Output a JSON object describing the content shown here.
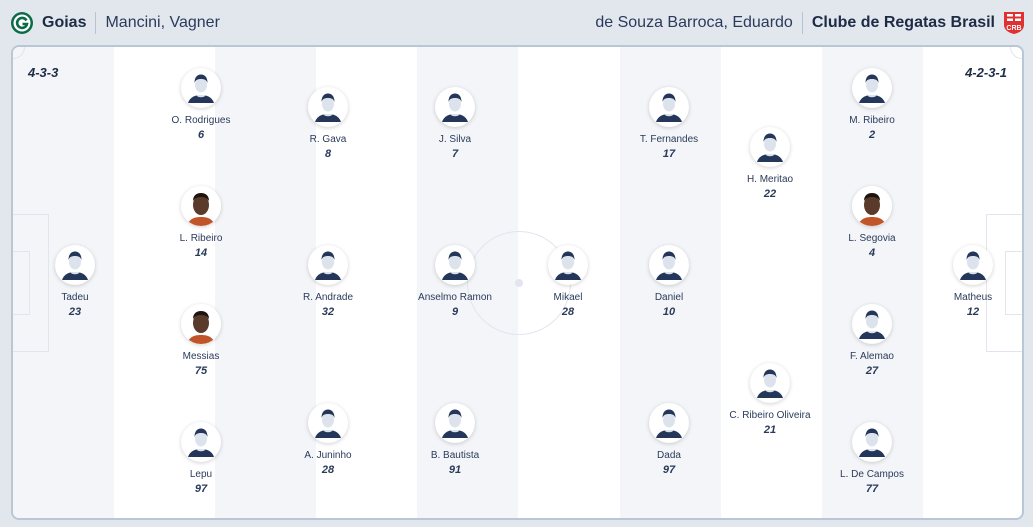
{
  "home": {
    "team": "Goias",
    "coach": "Mancini, Vagner",
    "formation": "4-3-3",
    "logo_color": "#0c6b46",
    "players": [
      {
        "name": "Tadeu",
        "number": "23",
        "photo": false
      },
      {
        "name": "O. Rodrigues",
        "number": "6",
        "photo": false
      },
      {
        "name": "L. Ribeiro",
        "number": "14",
        "photo": true
      },
      {
        "name": "Messias",
        "number": "75",
        "photo": true
      },
      {
        "name": "Lepu",
        "number": "97",
        "photo": false
      },
      {
        "name": "R. Gava",
        "number": "8",
        "photo": false
      },
      {
        "name": "R. Andrade",
        "number": "32",
        "photo": false
      },
      {
        "name": "A. Juninho",
        "number": "28",
        "photo": false
      },
      {
        "name": "J. Silva",
        "number": "7",
        "photo": false
      },
      {
        "name": "Anselmo Ramon",
        "number": "9",
        "photo": false
      },
      {
        "name": "B. Bautista",
        "number": "91",
        "photo": false
      }
    ]
  },
  "away": {
    "team": "Clube de Regatas Brasil",
    "coach": "de Souza Barroca, Eduardo",
    "formation": "4-2-3-1",
    "logo_color": "#e03030",
    "players": [
      {
        "name": "Mikael",
        "number": "28",
        "photo": false
      },
      {
        "name": "T. Fernandes",
        "number": "17",
        "photo": false
      },
      {
        "name": "Daniel",
        "number": "10",
        "photo": false
      },
      {
        "name": "Dada",
        "number": "97",
        "photo": false
      },
      {
        "name": "H. Meritao",
        "number": "22",
        "photo": false
      },
      {
        "name": "C. Ribeiro Oliveira",
        "number": "21",
        "photo": false
      },
      {
        "name": "M. Ribeiro",
        "number": "2",
        "photo": false
      },
      {
        "name": "L. Segovia",
        "number": "4",
        "photo": true
      },
      {
        "name": "F. Alemao",
        "number": "27",
        "photo": false
      },
      {
        "name": "L. De Campos",
        "number": "77",
        "photo": false
      },
      {
        "name": "Matheus",
        "number": "12",
        "photo": false
      }
    ]
  }
}
